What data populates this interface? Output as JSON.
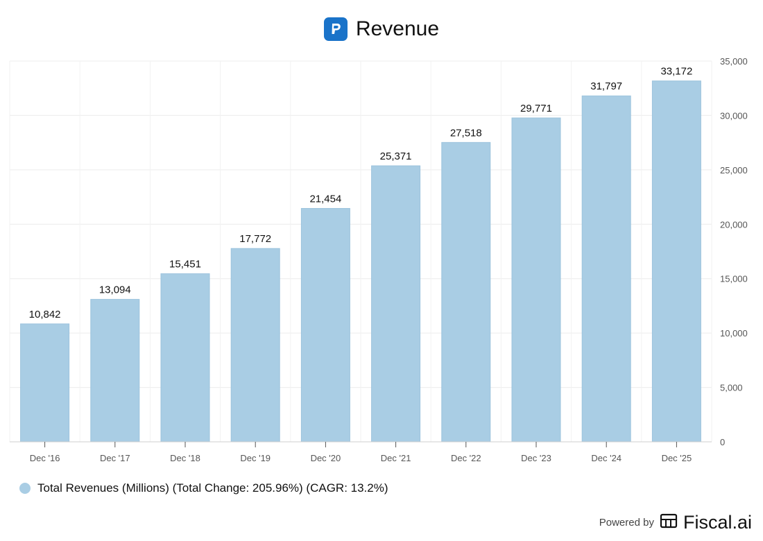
{
  "header": {
    "title": "Revenue",
    "logo_icon": "paypal-logo-icon"
  },
  "chart_data": {
    "type": "bar",
    "title": "Revenue",
    "categories": [
      "Dec '16",
      "Dec '17",
      "Dec '18",
      "Dec '19",
      "Dec '20",
      "Dec '21",
      "Dec '22",
      "Dec '23",
      "Dec '24",
      "Dec '25"
    ],
    "values": [
      10842,
      13094,
      15451,
      17772,
      21454,
      25371,
      27518,
      29771,
      31797,
      33172
    ],
    "value_labels": [
      "10,842",
      "13,094",
      "15,451",
      "17,772",
      "21,454",
      "25,371",
      "27,518",
      "29,771",
      "31,797",
      "33,172"
    ],
    "ylim": [
      0,
      35000
    ],
    "yticks": [
      0,
      5000,
      10000,
      15000,
      20000,
      25000,
      30000,
      35000
    ],
    "ytick_labels": [
      "0",
      "5,000",
      "10,000",
      "15,000",
      "20,000",
      "25,000",
      "30,000",
      "35,000"
    ],
    "yaxis_position": "right",
    "grid": true,
    "bar_color": "#a9cde4",
    "xlabel": "",
    "ylabel": ""
  },
  "legend": {
    "label": "Total Revenues (Millions) (Total Change: 205.96%) (CAGR: 13.2%)",
    "color": "#a9cde4"
  },
  "footer": {
    "powered_by": "Powered by",
    "brand": "Fiscal.ai",
    "brand_icon": "fiscal-ai-logo-icon"
  }
}
